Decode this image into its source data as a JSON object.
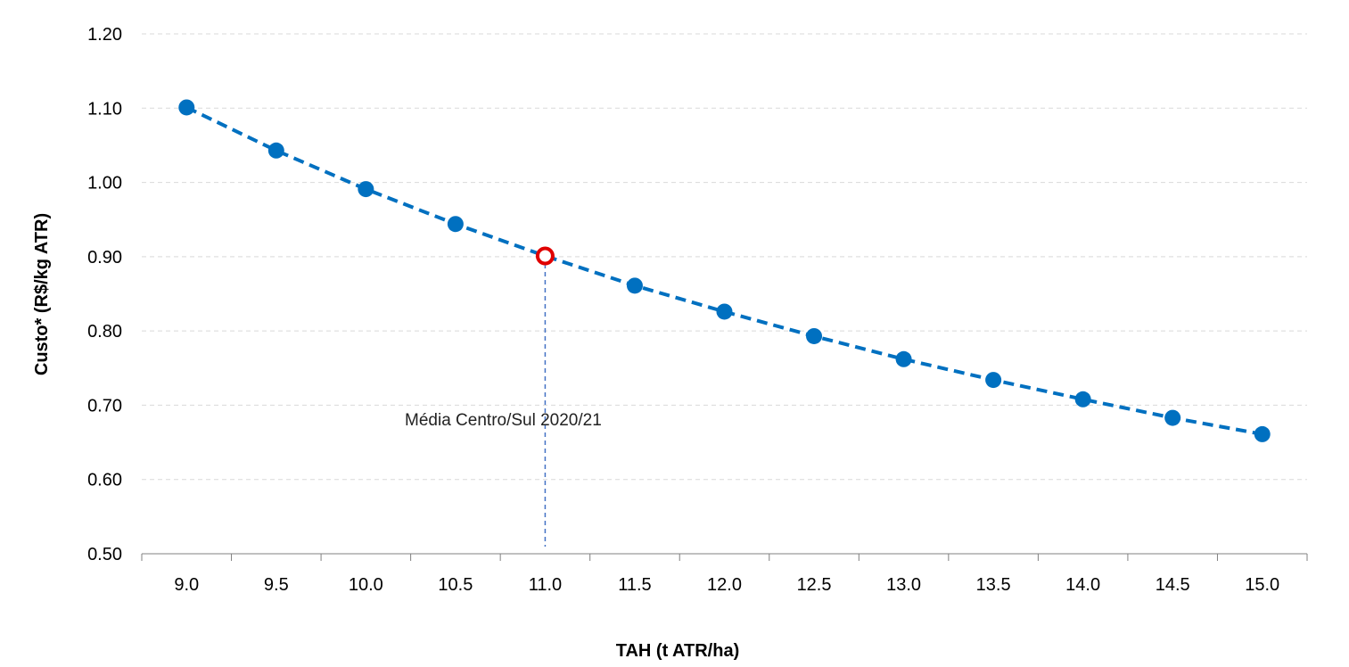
{
  "chart_data": {
    "type": "line",
    "title": "",
    "xlabel": "TAH (t ATR/ha)",
    "ylabel": "Custo* (R$/kg ATR)",
    "x_tick_labels": [
      "9.0",
      "9.5",
      "10.0",
      "10.5",
      "11.0",
      "11.5",
      "12.0",
      "12.5",
      "13.0",
      "13.5",
      "14.0",
      "14.5",
      "15.0"
    ],
    "y_tick_labels": [
      "0.50",
      "0.60",
      "0.70",
      "0.80",
      "0.90",
      "1.00",
      "1.10",
      "1.20"
    ],
    "ylim": [
      0.5,
      1.2
    ],
    "grid": true,
    "line_style": "dashed",
    "series": [
      {
        "x": [
          9.0,
          9.5,
          10.0,
          10.5,
          11.0,
          11.5,
          12.0,
          12.5,
          13.0,
          13.5,
          14.0,
          14.5,
          15.0
        ],
        "values": [
          1.101,
          1.043,
          0.991,
          0.944,
          0.901,
          0.861,
          0.826,
          0.793,
          0.762,
          0.734,
          0.708,
          0.683,
          0.661
        ],
        "color": "#0070C0"
      }
    ],
    "highlight": {
      "x": 11.0,
      "y": 0.901,
      "marker_fill": "#ffffff",
      "marker_stroke": "#E00000",
      "guide_color": "#4472C4"
    },
    "annotation": {
      "text": "Média Centro/Sul 2020/21",
      "x": 11.0,
      "y": 0.68
    },
    "colors": {
      "grid": "#D9D9D9",
      "axis": "#808080"
    }
  }
}
